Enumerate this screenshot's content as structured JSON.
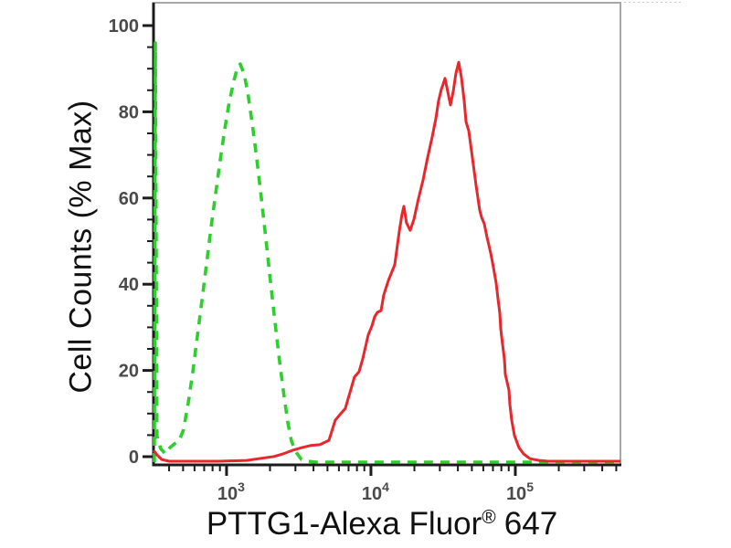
{
  "figure": {
    "x_title_main": "PTTG1-Alexa Fluor",
    "x_title_reg": "®",
    "x_title_num": "647",
    "background_color": "#ffffff",
    "axis_color": "#1c1c1c",
    "border_color": "#a8a8a8",
    "tick_label_color": "#4a4a4a",
    "text_color": "#111111"
  },
  "chart_data": {
    "type": "line",
    "title": "",
    "xlabel": "PTTG1-Alexa Fluor® 647",
    "ylabel": "Cell Counts (% Max)",
    "x_scale": "log",
    "xlim": [
      312,
      534500
    ],
    "ylim": [
      0,
      100
    ],
    "grid": false,
    "legend": "none",
    "x_ticks": [
      {
        "base": "10",
        "exp": "3",
        "value": 1000
      },
      {
        "base": "10",
        "exp": "4",
        "value": 10000
      },
      {
        "base": "10",
        "exp": "5",
        "value": 100000
      }
    ],
    "y_ticks": [
      {
        "label": "0",
        "value": 0
      },
      {
        "label": "20",
        "value": 20
      },
      {
        "label": "40",
        "value": 40
      },
      {
        "label": "60",
        "value": 60
      },
      {
        "label": "80",
        "value": 80
      },
      {
        "label": "100",
        "value": 100
      }
    ],
    "y_minor_tick_step": 5,
    "series": [
      {
        "name": "green-dashed-histogram",
        "color": "#2FCE2F",
        "line_style": "dashed",
        "points": [
          [
            316,
            0
          ],
          [
            321,
            96
          ],
          [
            330,
            6
          ],
          [
            350,
            3.1
          ],
          [
            377,
            1.9
          ],
          [
            405,
            3.3
          ],
          [
            436,
            4.2
          ],
          [
            469,
            4.8
          ],
          [
            504,
            7.5
          ],
          [
            542,
            13.4
          ],
          [
            583,
            20.5
          ],
          [
            627,
            28.7
          ],
          [
            675,
            37
          ],
          [
            726,
            45.4
          ],
          [
            781,
            53.8
          ],
          [
            840,
            61.5
          ],
          [
            903,
            69
          ],
          [
            971,
            76.2
          ],
          [
            1045,
            82.6
          ],
          [
            1124,
            87.4
          ],
          [
            1191,
            90.4
          ],
          [
            1244,
            91.2
          ],
          [
            1319,
            89.1
          ],
          [
            1399,
            84.9
          ],
          [
            1504,
            77.8
          ],
          [
            1618,
            69.5
          ],
          [
            1740,
            60.7
          ],
          [
            1871,
            51.3
          ],
          [
            2013,
            41.6
          ],
          [
            2165,
            32.2
          ],
          [
            2328,
            23.2
          ],
          [
            2504,
            15.1
          ],
          [
            2655,
            9.2
          ],
          [
            2815,
            4.8
          ],
          [
            3027,
            2.3
          ],
          [
            3303,
            0.6
          ],
          [
            3606,
            0.2
          ],
          [
            4200,
            0
          ],
          [
            534500,
            0
          ]
        ]
      },
      {
        "name": "red-solid-histogram",
        "color": "#E8262B",
        "line_style": "solid",
        "points": [
          [
            312,
            2.7
          ],
          [
            330,
            1.7
          ],
          [
            355,
            0.6
          ],
          [
            399,
            0.2
          ],
          [
            890,
            0.2
          ],
          [
            1378,
            0.4
          ],
          [
            2133,
            1.3
          ],
          [
            2468,
            1.9
          ],
          [
            2856,
            2.7
          ],
          [
            3303,
            3.3
          ],
          [
            3822,
            3.8
          ],
          [
            4422,
            4.0
          ],
          [
            5117,
            5.0
          ],
          [
            5663,
            9.6
          ],
          [
            6182,
            11.1
          ],
          [
            6648,
            12.3
          ],
          [
            7151,
            15.9
          ],
          [
            7692,
            19.5
          ],
          [
            8272,
            20.7
          ],
          [
            8769,
            23.6
          ],
          [
            9163,
            26.4
          ],
          [
            9572,
            29.1
          ],
          [
            10150,
            31.2
          ],
          [
            10600,
            33.3
          ],
          [
            11075,
            34.3
          ],
          [
            11740,
            34.7
          ],
          [
            12265,
            38.3
          ],
          [
            13190,
            41.6
          ],
          [
            14610,
            45.2
          ],
          [
            15710,
            52.9
          ],
          [
            16410,
            56.7
          ],
          [
            16900,
            58.6
          ],
          [
            17650,
            54.8
          ],
          [
            18710,
            53.1
          ],
          [
            19840,
            55.6
          ],
          [
            21330,
            60.3
          ],
          [
            22950,
            64.6
          ],
          [
            24680,
            69.7
          ],
          [
            26550,
            74.5
          ],
          [
            28140,
            78.7
          ],
          [
            29400,
            82.8
          ],
          [
            30720,
            85.4
          ],
          [
            31620,
            86.6
          ],
          [
            32560,
            87.9
          ],
          [
            34020,
            84.9
          ],
          [
            35530,
            81.8
          ],
          [
            37130,
            84.9
          ],
          [
            38790,
            89.1
          ],
          [
            40520,
            91.6
          ],
          [
            42330,
            88.1
          ],
          [
            44230,
            82.8
          ],
          [
            45530,
            78.0
          ],
          [
            47560,
            75.9
          ],
          [
            50410,
            69.7
          ],
          [
            53440,
            63.4
          ],
          [
            56650,
            57.7
          ],
          [
            58330,
            56.1
          ],
          [
            60940,
            54.6
          ],
          [
            63670,
            51.5
          ],
          [
            67500,
            47.9
          ],
          [
            70500,
            44.6
          ],
          [
            73650,
            41.0
          ],
          [
            75830,
            37.4
          ],
          [
            78080,
            34.1
          ],
          [
            79230,
            30.5
          ],
          [
            81580,
            27.0
          ],
          [
            83990,
            23.6
          ],
          [
            85220,
            20.1
          ],
          [
            90320,
            16.5
          ],
          [
            91640,
            13.2
          ],
          [
            94340,
            9.6
          ],
          [
            98550,
            6.1
          ],
          [
            106000,
            3.3
          ],
          [
            114000,
            1.9
          ],
          [
            126200,
            0.8
          ],
          [
            146100,
            0.4
          ],
          [
            169000,
            0.2
          ],
          [
            534500,
            0.2
          ]
        ]
      }
    ]
  }
}
